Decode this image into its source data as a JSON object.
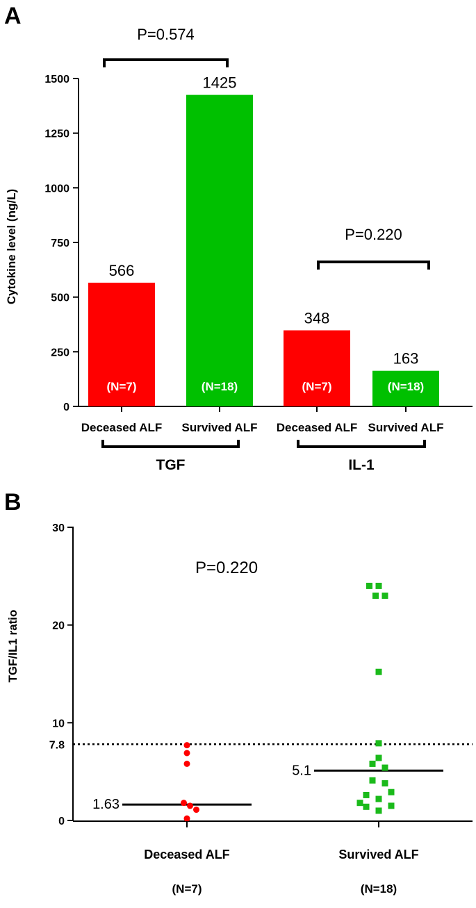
{
  "chart_data": [
    {
      "panel": "A",
      "type": "bar",
      "ylabel": "Cytokine level (ng/L)",
      "ylim": [
        0,
        1500
      ],
      "yticks": [
        0,
        250,
        500,
        750,
        1000,
        1250,
        1500
      ],
      "categories": [
        "Deceased ALF",
        "Survived ALF",
        "Deceased ALF",
        "Survived ALF"
      ],
      "groups": [
        {
          "name": "TGF",
          "categories": [
            0,
            1
          ]
        },
        {
          "name": "IL-1",
          "categories": [
            2,
            3
          ]
        }
      ],
      "bars": [
        {
          "category": "Deceased ALF",
          "group": "TGF",
          "value": 566,
          "label": "566",
          "n": "(N=7)",
          "color": "#ff0000"
        },
        {
          "category": "Survived ALF",
          "group": "TGF",
          "value": 1425,
          "label": "1425",
          "n": "(N=18)",
          "color": "#00c000"
        },
        {
          "category": "Deceased ALF",
          "group": "IL-1",
          "value": 348,
          "label": "348",
          "n": "(N=7)",
          "color": "#ff0000"
        },
        {
          "category": "Survived ALF",
          "group": "IL-1",
          "value": 163,
          "label": "163",
          "n": "(N=18)",
          "color": "#00c000"
        }
      ],
      "comparisons": [
        {
          "group": "TGF",
          "label": "P=0.574"
        },
        {
          "group": "IL-1",
          "label": "P=0.220"
        }
      ]
    },
    {
      "panel": "B",
      "type": "scatter",
      "ylabel": "TGF/IL1 ratio",
      "ylim": [
        0,
        30
      ],
      "yticks": [
        0,
        10,
        20,
        30
      ],
      "threshold": {
        "value": 7.8,
        "label": "7.8",
        "style": "dotted"
      },
      "pvalue": "P=0.220",
      "groups": [
        {
          "name": "Deceased ALF",
          "n": "(N=7)",
          "color": "#ff0000",
          "marker": "circle",
          "median": 1.63,
          "median_label": "1.63",
          "points": [
            {
              "dx": 0,
              "y": 7.7
            },
            {
              "dx": 0,
              "y": 6.9
            },
            {
              "dx": 0,
              "y": 5.8
            },
            {
              "dx": -0.5,
              "y": 1.8
            },
            {
              "dx": 0.5,
              "y": 1.5
            },
            {
              "dx": 1.5,
              "y": 1.1
            },
            {
              "dx": 0,
              "y": 0.2
            }
          ]
        },
        {
          "name": "Survived ALF",
          "n": "(N=18)",
          "color": "#1aba1a",
          "marker": "square",
          "median": 5.1,
          "median_label": "5.1",
          "points": [
            {
              "dx": -1.5,
              "y": 24.0
            },
            {
              "dx": 0,
              "y": 24.0
            },
            {
              "dx": -0.5,
              "y": 23.0
            },
            {
              "dx": 1,
              "y": 23.0
            },
            {
              "dx": 0,
              "y": 15.2
            },
            {
              "dx": 0,
              "y": 7.9
            },
            {
              "dx": 0,
              "y": 6.4
            },
            {
              "dx": -1,
              "y": 5.8
            },
            {
              "dx": 1,
              "y": 5.4
            },
            {
              "dx": -1,
              "y": 4.1
            },
            {
              "dx": 1,
              "y": 3.8
            },
            {
              "dx": 2,
              "y": 2.9
            },
            {
              "dx": -2,
              "y": 2.6
            },
            {
              "dx": 0,
              "y": 2.2
            },
            {
              "dx": -3,
              "y": 1.8
            },
            {
              "dx": -2,
              "y": 1.4
            },
            {
              "dx": 2,
              "y": 1.5
            },
            {
              "dx": 0,
              "y": 1.0
            }
          ]
        }
      ]
    }
  ],
  "panel_labels": {
    "a": "A",
    "b": "B"
  }
}
